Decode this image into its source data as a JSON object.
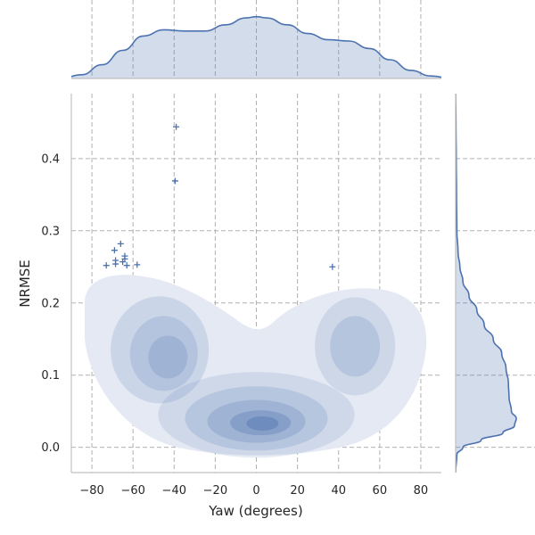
{
  "chart_data": {
    "type": "scatter",
    "style": "seaborn jointplot: kde density fill with outlier markers and marginal kde curves",
    "xlabel": "Yaw (degrees)",
    "ylabel": "NRMSE",
    "xlim": [
      -90,
      90
    ],
    "ylim": [
      -0.035,
      0.49
    ],
    "xticks": [
      -80,
      -60,
      -40,
      -20,
      0,
      20,
      40,
      60,
      80
    ],
    "xtick_labels": [
      "−80",
      "−60",
      "−40",
      "−20",
      "0",
      "20",
      "40",
      "60",
      "80"
    ],
    "yticks": [
      0.0,
      0.1,
      0.2,
      0.3,
      0.4
    ],
    "ytick_labels": [
      "0.0",
      "0.1",
      "0.2",
      "0.3",
      "0.4"
    ],
    "grid": true,
    "color": "#4c72b0",
    "marker": "+",
    "points": [
      {
        "x": -39,
        "y": 0.444
      },
      {
        "x": -39.5,
        "y": 0.369
      },
      {
        "x": -66,
        "y": 0.282
      },
      {
        "x": -69,
        "y": 0.273
      },
      {
        "x": -64,
        "y": 0.265
      },
      {
        "x": -64,
        "y": 0.261
      },
      {
        "x": -68.5,
        "y": 0.259
      },
      {
        "x": -65,
        "y": 0.257
      },
      {
        "x": -68.5,
        "y": 0.254
      },
      {
        "x": -63,
        "y": 0.252
      },
      {
        "x": -73,
        "y": 0.252
      },
      {
        "x": -58,
        "y": 0.253
      },
      {
        "x": 37,
        "y": 0.25
      }
    ],
    "density_modes": [
      {
        "x": 0,
        "y": 0.035,
        "weight": 1.0
      },
      {
        "x": -45,
        "y": 0.13,
        "weight": 0.55
      },
      {
        "x": 48,
        "y": 0.13,
        "weight": 0.45
      }
    ],
    "marginal_x": {
      "x": [
        -95,
        -85,
        -75,
        -65,
        -55,
        -45,
        -35,
        -25,
        -15,
        -5,
        0,
        5,
        15,
        25,
        35,
        45,
        55,
        65,
        75,
        85,
        95
      ],
      "density": [
        0.0,
        0.06,
        0.22,
        0.45,
        0.68,
        0.78,
        0.76,
        0.76,
        0.86,
        0.97,
        0.99,
        0.97,
        0.86,
        0.72,
        0.62,
        0.6,
        0.48,
        0.3,
        0.13,
        0.04,
        0.0
      ]
    },
    "marginal_y": {
      "y": [
        -0.035,
        -0.01,
        0.0,
        0.01,
        0.02,
        0.03,
        0.04,
        0.05,
        0.07,
        0.09,
        0.11,
        0.13,
        0.15,
        0.17,
        0.19,
        0.21,
        0.23,
        0.25,
        0.27,
        0.3,
        0.35,
        0.4,
        0.45,
        0.49
      ],
      "density": [
        0.0,
        0.02,
        0.12,
        0.42,
        0.78,
        0.97,
        1.0,
        0.92,
        0.88,
        0.87,
        0.83,
        0.76,
        0.62,
        0.47,
        0.35,
        0.22,
        0.12,
        0.07,
        0.04,
        0.02,
        0.015,
        0.01,
        0.005,
        0.0
      ]
    }
  }
}
